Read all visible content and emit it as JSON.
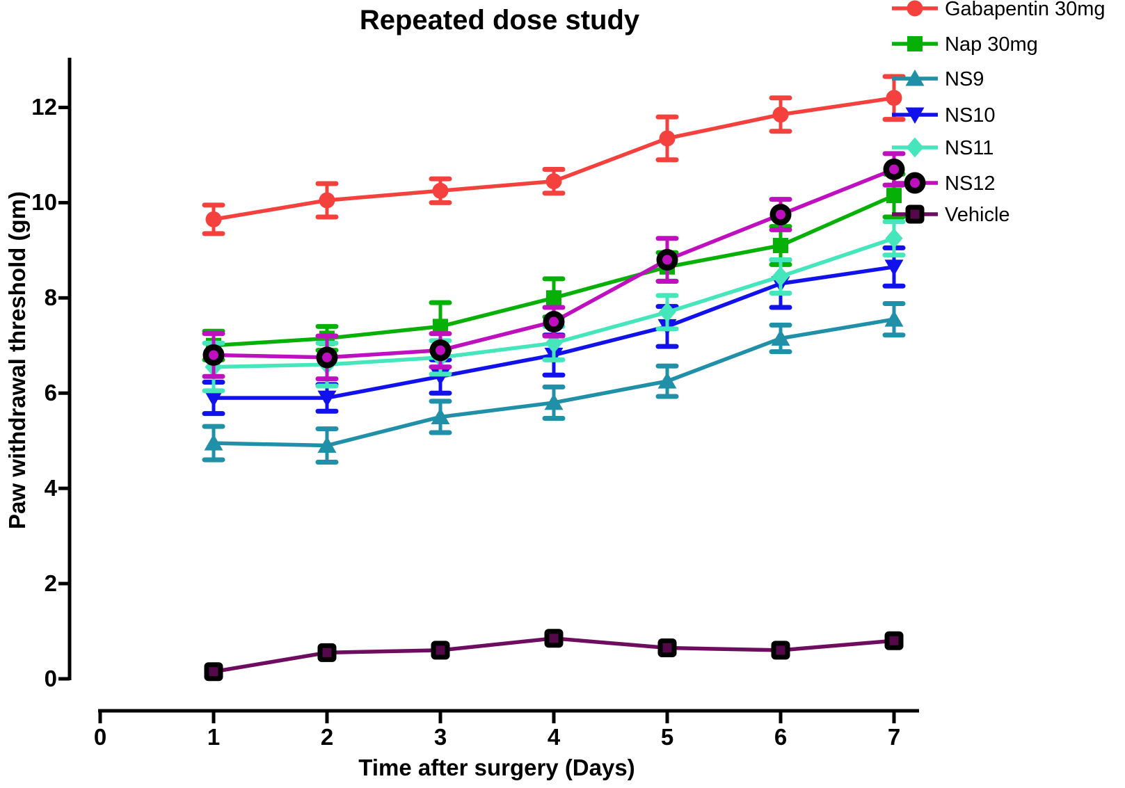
{
  "chart_data": {
    "type": "line",
    "title": "Repeated dose study",
    "xlabel": "Time after surgery (Days)",
    "ylabel": "Paw withdrawal threshold (gm)",
    "grid": false,
    "legend_position": "top-right-outside",
    "x": [
      1,
      2,
      3,
      4,
      5,
      6,
      7
    ],
    "xaxis": {
      "ticks": [
        "0",
        "1",
        "2",
        "3",
        "4",
        "5",
        "6",
        "7"
      ],
      "range": [
        0,
        7.2
      ]
    },
    "yaxis": {
      "ticks": [
        "0",
        "2",
        "4",
        "6",
        "8",
        "10",
        "12"
      ],
      "tick_values": [
        0,
        2,
        4,
        6,
        8,
        10,
        12
      ],
      "range": [
        0,
        13
      ]
    },
    "axis_color": "#000000",
    "series": [
      {
        "name": "Gabapentin 30mg",
        "color": "#F4413E",
        "marker": "circle",
        "values": [
          9.65,
          10.05,
          10.25,
          10.45,
          11.35,
          11.85,
          12.2
        ],
        "errors": [
          0.3,
          0.35,
          0.25,
          0.25,
          0.45,
          0.35,
          0.45
        ]
      },
      {
        "name": "Nap 30mg",
        "color": "#07B007",
        "marker": "square",
        "values": [
          7.0,
          7.15,
          7.4,
          8.0,
          8.65,
          9.1,
          10.15
        ],
        "errors": [
          0.3,
          0.25,
          0.5,
          0.4,
          0.3,
          0.4,
          0.45
        ]
      },
      {
        "name": "NS9",
        "color": "#1F90A8",
        "marker": "triangle-up",
        "values": [
          4.95,
          4.9,
          5.5,
          5.8,
          6.25,
          7.15,
          7.55
        ],
        "errors": [
          0.35,
          0.35,
          0.33,
          0.33,
          0.32,
          0.28,
          0.33
        ]
      },
      {
        "name": "NS10",
        "color": "#1111EC",
        "marker": "triangle-down",
        "values": [
          5.9,
          5.9,
          6.35,
          6.8,
          7.4,
          8.3,
          8.65
        ],
        "errors": [
          0.33,
          0.28,
          0.35,
          0.42,
          0.42,
          0.5,
          0.4
        ]
      },
      {
        "name": "NS11",
        "color": "#45E6BB",
        "marker": "diamond",
        "values": [
          6.55,
          6.6,
          6.75,
          7.05,
          7.7,
          8.45,
          9.25
        ],
        "errors": [
          0.5,
          0.45,
          0.35,
          0.35,
          0.35,
          0.35,
          0.35
        ]
      },
      {
        "name": "NS12",
        "color": "#BE10BE",
        "marker": "circle-ring",
        "ring_color": "#000000",
        "values": [
          6.8,
          6.75,
          6.9,
          7.5,
          8.8,
          9.75,
          10.7
        ],
        "errors": [
          0.45,
          0.45,
          0.35,
          0.3,
          0.45,
          0.32,
          0.33
        ]
      },
      {
        "name": "Vehicle",
        "color": "#6E0C60",
        "marker": "square-ring",
        "ring_color": "#000000",
        "inner_color": "#55094A",
        "values": [
          0.15,
          0.55,
          0.6,
          0.85,
          0.65,
          0.6,
          0.8
        ],
        "errors": [
          0,
          0,
          0,
          0,
          0,
          0,
          0
        ]
      }
    ]
  }
}
